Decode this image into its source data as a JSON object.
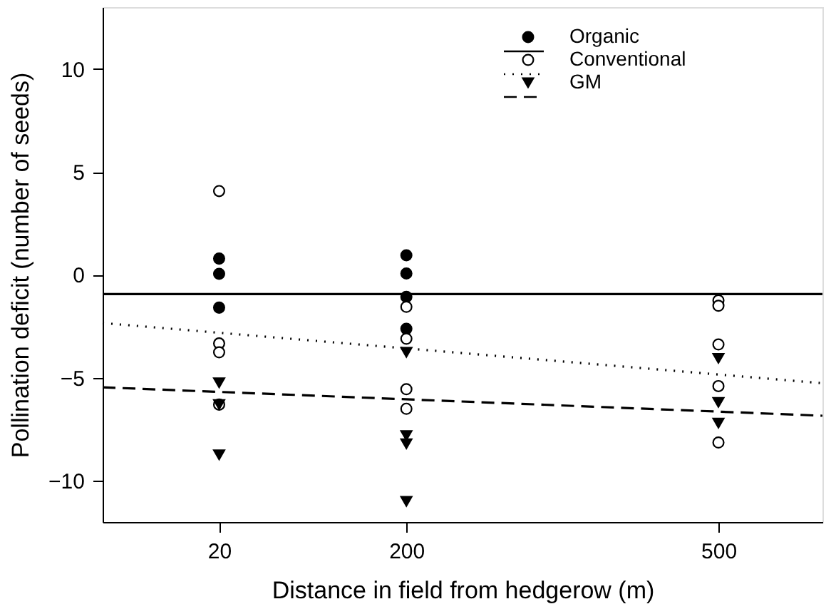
{
  "chart_data": {
    "type": "scatter",
    "xlabel": "Distance in field from hedgerow (m)",
    "ylabel": "Pollination deficit (number of seeds)",
    "xlim": [
      -92,
      600
    ],
    "xticks": [
      20,
      200,
      500
    ],
    "ylim": [
      -12,
      13
    ],
    "yticks": [
      -10,
      -5,
      0,
      5,
      10
    ],
    "grid": false,
    "legend": "top right",
    "series": [
      {
        "name": "Organic",
        "color": "#000000",
        "marker": "circle",
        "x": [
          20,
          20,
          20,
          200,
          200,
          200,
          200
        ],
        "values": [
          0.79,
          0.05,
          -1.59,
          0.95,
          0.07,
          -1.07,
          -2.62
        ]
      },
      {
        "name": "Conventional",
        "color": "#000000",
        "marker": "circle_open",
        "x": [
          20,
          20,
          20,
          20,
          200,
          200,
          200,
          200,
          500,
          500,
          500,
          500,
          500
        ],
        "values": [
          4.07,
          -3.33,
          -3.76,
          -6.3,
          -1.55,
          -3.1,
          -5.55,
          -6.5,
          -1.24,
          -1.5,
          -3.38,
          -5.4,
          -8.14
        ]
      },
      {
        "name": "GM",
        "color": "#000000",
        "marker": "triangle-down",
        "x": [
          20,
          20,
          20,
          200,
          200,
          200,
          200,
          500,
          500,
          500
        ],
        "values": [
          -5.24,
          -6.3,
          -8.74,
          -3.76,
          -7.8,
          -8.2,
          -11.0,
          -4.05,
          -6.19,
          -7.2
        ]
      },
      {
        "type": "line",
        "color": "#000000",
        "line_style": "solid",
        "x": [
          -92,
          600
        ],
        "values": [
          -0.93,
          -0.93
        ]
      },
      {
        "type": "line",
        "color": "#000000",
        "line_style": "dotted",
        "x": [
          -92,
          600
        ],
        "values": [
          -2.34,
          -5.26
        ]
      },
      {
        "type": "line",
        "color": "#000000",
        "line_style": "dashed",
        "x": [
          -92,
          600
        ],
        "values": [
          -5.46,
          -6.84
        ]
      }
    ]
  }
}
